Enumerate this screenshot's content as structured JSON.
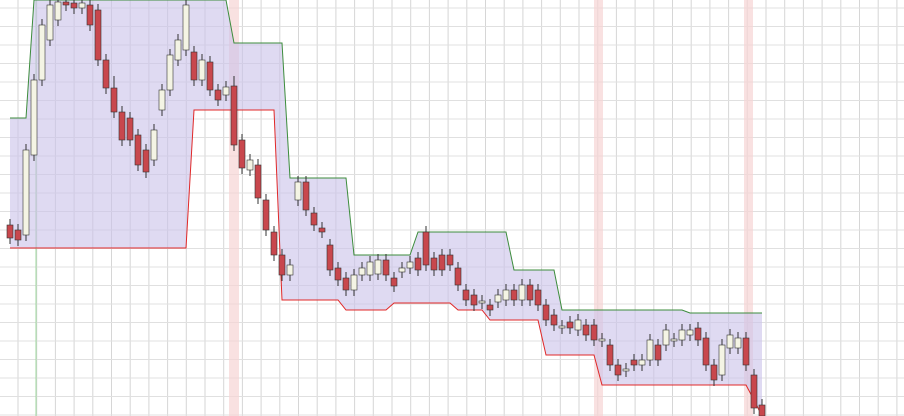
{
  "chart_data": {
    "type": "candlestick",
    "categories": [
      null,
      null,
      null,
      null,
      null,
      null,
      null,
      null,
      null,
      null,
      null,
      null,
      null,
      null,
      null,
      null,
      null,
      null,
      null,
      null,
      null,
      null,
      null,
      null,
      null,
      null,
      null,
      null,
      null,
      null,
      null,
      null,
      null,
      null,
      null,
      null,
      null,
      null,
      null,
      null,
      null,
      null,
      null,
      null,
      null,
      null,
      null,
      null,
      null,
      null,
      null,
      null,
      null,
      null,
      null,
      null,
      null,
      null,
      null,
      null,
      null,
      null,
      null,
      null,
      null,
      null,
      null,
      null,
      null,
      null,
      null,
      null,
      null,
      null,
      null,
      null,
      null,
      null,
      null,
      null,
      null,
      null,
      null,
      null,
      null,
      null,
      null,
      null,
      null,
      null,
      null,
      null,
      null,
      null,
      null
    ],
    "open": [
      191,
      186,
      181,
      261,
      336,
      376,
      396,
      414,
      413,
      408,
      411,
      406,
      356,
      328,
      304,
      298,
      281,
      266,
      256,
      306,
      326,
      356,
      366,
      364,
      336,
      354,
      326,
      321,
      330,
      276,
      246,
      251,
      216,
      184,
      161,
      141,
      216,
      234,
      203,
      188,
      171,
      148,
      138,
      126,
      141,
      141,
      142,
      156,
      138,
      144,
      148,
      158,
      184,
      158,
      161,
      161,
      148,
      126,
      121,
      113,
      111,
      114,
      116,
      126,
      116,
      131,
      126,
      111,
      101,
      88,
      94,
      86,
      91,
      91,
      75,
      71,
      51,
      45,
      56,
      51,
      56,
      71,
      71,
      75,
      76,
      81,
      88,
      78,
      51,
      41,
      68,
      68,
      78,
      41,
      11
    ],
    "close": [
      178,
      176,
      266,
      336,
      391,
      411,
      414,
      411,
      408,
      413,
      391,
      356,
      328,
      304,
      276,
      276,
      251,
      244,
      286,
      326,
      361,
      376,
      411,
      336,
      356,
      326,
      316,
      329,
      271,
      248,
      256,
      218,
      186,
      161,
      141,
      151,
      234,
      206,
      191,
      184,
      146,
      136,
      126,
      141,
      148,
      154,
      156,
      141,
      130,
      148,
      154,
      146,
      151,
      146,
      146,
      151,
      131,
      116,
      111,
      115,
      106,
      121,
      126,
      116,
      131,
      116,
      111,
      96,
      91,
      90,
      88,
      96,
      81,
      76,
      77,
      51,
      41,
      47,
      51,
      56,
      76,
      56,
      86,
      77,
      86,
      86,
      76,
      51,
      36,
      71,
      81,
      78,
      51,
      8,
      0
    ],
    "high": [
      197,
      192,
      272,
      342,
      397,
      416,
      416,
      416,
      416,
      416,
      416,
      412,
      362,
      340,
      310,
      304,
      287,
      272,
      292,
      332,
      367,
      382,
      416,
      370,
      362,
      360,
      332,
      335,
      340,
      282,
      262,
      257,
      222,
      190,
      167,
      157,
      240,
      240,
      209,
      194,
      177,
      154,
      144,
      147,
      154,
      160,
      162,
      162,
      144,
      154,
      160,
      164,
      190,
      164,
      167,
      167,
      154,
      132,
      127,
      121,
      117,
      127,
      132,
      132,
      137,
      137,
      132,
      117,
      107,
      96,
      100,
      102,
      97,
      97,
      83,
      77,
      57,
      53,
      62,
      62,
      82,
      77,
      92,
      83,
      92,
      92,
      94,
      84,
      57,
      77,
      87,
      84,
      84,
      47,
      17
    ],
    "low": [
      172,
      170,
      175,
      255,
      330,
      370,
      390,
      405,
      402,
      402,
      385,
      350,
      322,
      298,
      270,
      270,
      245,
      238,
      250,
      300,
      320,
      350,
      360,
      330,
      330,
      320,
      310,
      315,
      265,
      242,
      240,
      212,
      180,
      155,
      135,
      135,
      210,
      200,
      185,
      178,
      140,
      130,
      120,
      120,
      135,
      135,
      136,
      135,
      124,
      138,
      142,
      140,
      145,
      140,
      140,
      145,
      125,
      110,
      105,
      107,
      100,
      108,
      110,
      110,
      110,
      110,
      105,
      90,
      85,
      82,
      82,
      80,
      75,
      70,
      69,
      45,
      35,
      39,
      45,
      45,
      50,
      50,
      65,
      69,
      70,
      75,
      70,
      45,
      30,
      35,
      62,
      62,
      45,
      2,
      0
    ],
    "up_color": "#f4f4e4",
    "down_color": "#c8474d",
    "candle_edge": "#333333",
    "channel": [
      {
        "color": "#3c8c3c",
        "values": [
          298,
          298,
          298,
          416,
          416,
          416,
          416,
          416,
          416,
          416,
          416,
          416,
          416,
          416,
          416,
          416,
          416,
          416,
          416,
          416,
          416,
          416,
          416,
          416,
          416,
          416,
          416,
          416,
          373,
          373,
          373,
          373,
          373,
          373,
          373,
          238,
          238,
          238,
          238,
          238,
          238,
          238,
          238,
          161,
          161,
          161,
          161,
          161,
          161,
          161,
          161,
          184,
          184,
          184,
          184,
          184,
          184,
          184,
          184,
          184,
          184,
          184,
          184,
          146,
          146,
          146,
          146,
          146,
          146,
          106,
          106,
          106,
          106,
          106,
          106,
          106,
          106,
          106,
          106,
          106,
          106,
          106,
          106,
          106,
          106,
          103,
          103,
          103,
          103,
          103,
          103,
          103,
          103,
          103,
          103
        ]
      },
      {
        "color": "#e02828",
        "values": [
          168,
          168,
          168,
          168,
          168,
          168,
          168,
          168,
          168,
          168,
          168,
          168,
          168,
          168,
          168,
          168,
          168,
          168,
          168,
          168,
          168,
          168,
          168,
          306,
          306,
          306,
          306,
          306,
          306,
          306,
          306,
          306,
          306,
          306,
          116,
          116,
          116,
          116,
          116,
          116,
          116,
          116,
          106,
          106,
          106,
          106,
          106,
          106,
          113,
          113,
          113,
          113,
          113,
          113,
          113,
          113,
          106,
          106,
          106,
          106,
          96,
          96,
          96,
          96,
          96,
          96,
          96,
          61,
          61,
          61,
          61,
          61,
          61,
          61,
          31,
          31,
          31,
          31,
          31,
          31,
          31,
          31,
          31,
          31,
          31,
          31,
          31,
          31,
          31,
          31,
          31,
          31,
          31,
          16,
          0
        ]
      }
    ],
    "channel_fill": "#c9c2ea",
    "ylim": [
      0,
      416
    ],
    "grid": true
  }
}
